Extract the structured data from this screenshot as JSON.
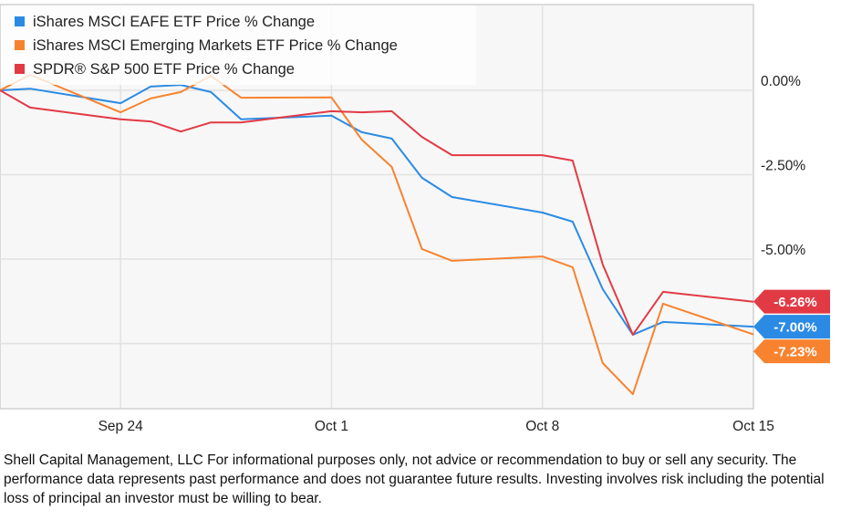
{
  "chart_data": {
    "type": "line",
    "title": "",
    "xlabel": "",
    "ylabel": "",
    "ylim": [
      -9.43,
      2.54
    ],
    "grid": true,
    "legend_position": "top-left",
    "x": [
      "Sep 20",
      "Sep 21",
      "Sep 24",
      "Sep 25",
      "Sep 26",
      "Sep 27",
      "Sep 28",
      "Oct 1",
      "Oct 2",
      "Oct 3",
      "Oct 4",
      "Oct 5",
      "Oct 8",
      "Oct 9",
      "Oct 10",
      "Oct 11",
      "Oct 12",
      "Oct 15"
    ],
    "x_range": [
      "Sep 20",
      "Oct 15"
    ],
    "x_ticks": [
      "Sep 24",
      "Oct 1",
      "Oct 8",
      "Oct 15"
    ],
    "y_ticks": [
      0,
      -2.5,
      -5
    ],
    "y_tick_labels": [
      "0.00%",
      "-2.50%",
      "-5.00%"
    ],
    "series": [
      {
        "name": "iShares MSCI EAFE ETF Price % Change",
        "color": "#2b8be4",
        "end_label": "-7.00%",
        "values": [
          0,
          0.05,
          -0.38,
          0.11,
          0.16,
          -0.05,
          -0.86,
          -0.75,
          -1.24,
          -1.43,
          -2.59,
          -3.16,
          -3.62,
          -3.89,
          -5.89,
          -7.24,
          -6.86,
          -7.0
        ]
      },
      {
        "name": "iShares MSCI Emerging Markets ETF Price % Change",
        "color": "#f7832f",
        "end_label": "-7.23%",
        "values": [
          0,
          0.46,
          -0.65,
          -0.24,
          -0.05,
          0.43,
          -0.22,
          -0.21,
          -1.46,
          -2.27,
          -4.7,
          -5.05,
          -4.92,
          -5.24,
          -8.08,
          -9.0,
          -6.32,
          -7.23
        ]
      },
      {
        "name": "SPDR® S&P 500 ETF Price % Change",
        "color": "#e23a45",
        "end_label": "-6.26%",
        "values": [
          0,
          -0.51,
          -0.86,
          -0.92,
          -1.22,
          -0.95,
          -0.95,
          -0.62,
          -0.65,
          -0.62,
          -1.38,
          -1.92,
          -1.92,
          -2.08,
          -5.16,
          -7.24,
          -5.97,
          -6.26
        ]
      }
    ]
  },
  "footer": "Shell Capital Management, LLC For informational purposes only, not advice or recommendation to buy or sell any security. The performance data represents past performance and does not guarantee future results. Investing involves risk including the potential loss of principal an investor must be willing to bear."
}
